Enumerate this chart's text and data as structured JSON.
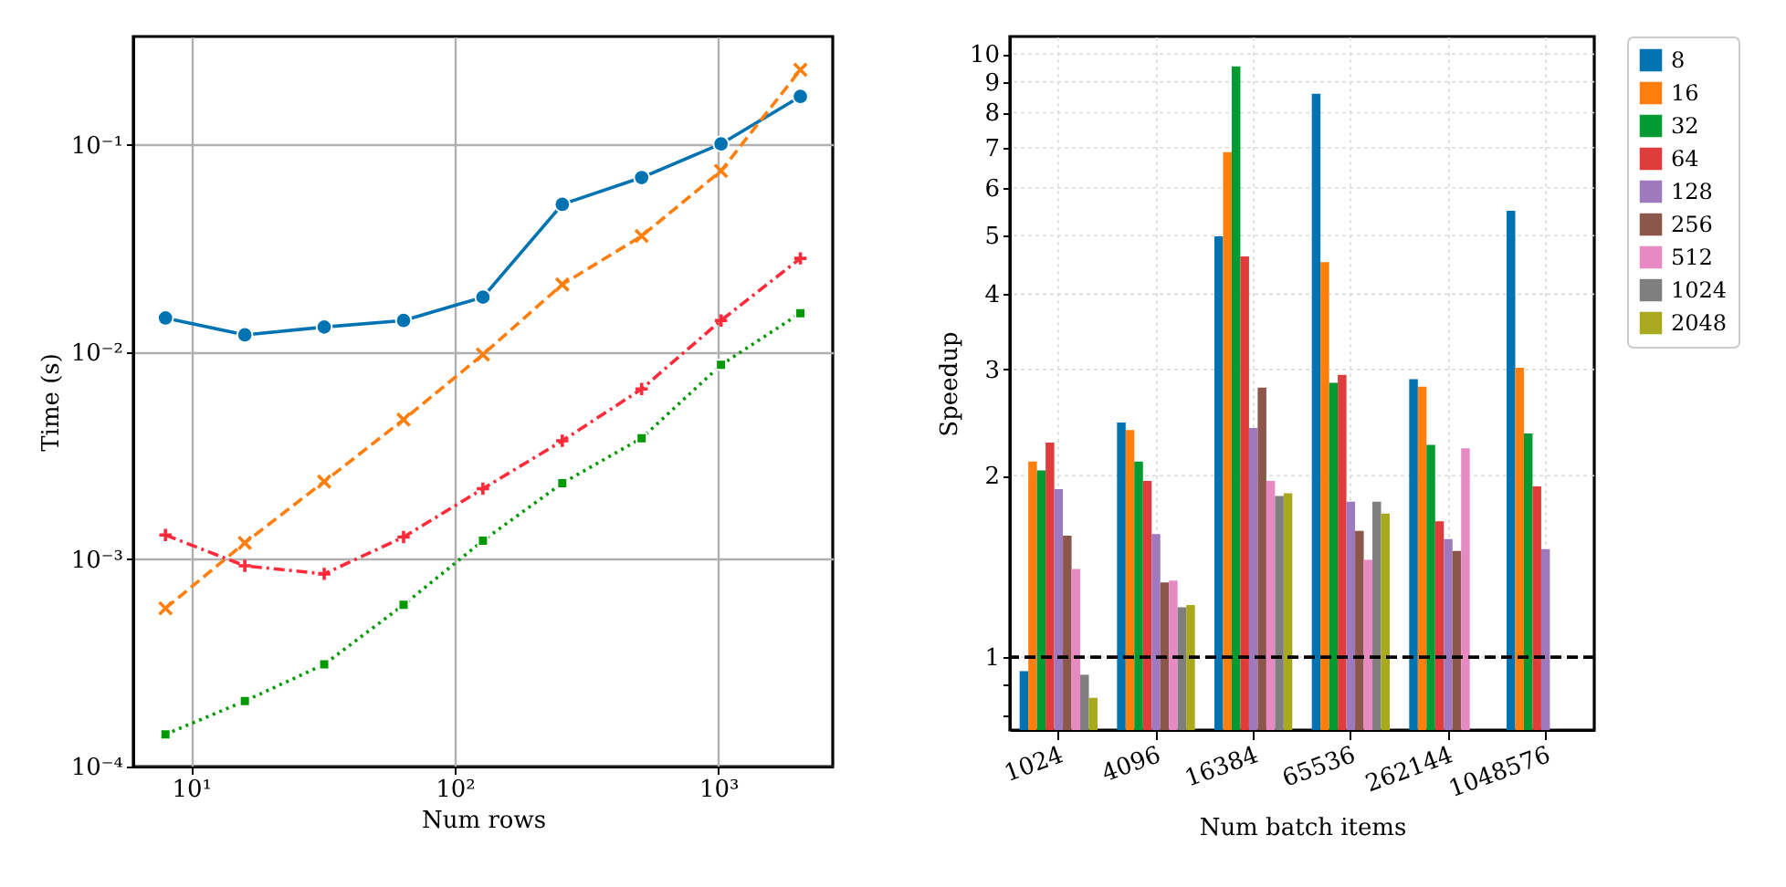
{
  "chart_data": [
    {
      "type": "line",
      "xlabel": "Num rows",
      "ylabel": "Time (s)",
      "log": "xy",
      "grid": true,
      "xlim": [
        6.04,
        2717
      ],
      "ylim": [
        0.0001,
        0.333
      ],
      "xticks": [
        {
          "value": 10,
          "label": "10¹"
        },
        {
          "value": 100,
          "label": "10²"
        },
        {
          "value": 1000,
          "label": "10³"
        }
      ],
      "yticks": [
        {
          "value": 0.0001,
          "label": "10⁻⁴"
        },
        {
          "value": 0.001,
          "label": "10⁻³"
        },
        {
          "value": 0.01,
          "label": "10⁻²"
        },
        {
          "value": 0.1,
          "label": "10⁻¹"
        }
      ],
      "x": [
        8,
        16,
        32,
        64,
        128,
        256,
        512,
        1024,
        2048
      ],
      "series": [
        {
          "color": "#0173b2",
          "marker": "circle",
          "line_style": "solid",
          "values": [
            0.0146,
            0.0121,
            0.0132,
            0.0142,
            0.0184,
            0.0516,
            0.0695,
            0.101,
            0.171
          ]
        },
        {
          "color": "#ff7f0e",
          "marker": "x",
          "line_style": "dashed",
          "values": [
            0.00058,
            0.0012,
            0.00237,
            0.00472,
            0.00973,
            0.0212,
            0.0363,
            0.0748,
            0.23
          ]
        },
        {
          "color": "#009a00",
          "marker": "square",
          "line_style": "dotted",
          "values": [
            0.000143,
            0.000207,
            0.000311,
            0.000603,
            0.00123,
            0.00233,
            0.00384,
            0.00867,
            0.0154
          ]
        },
        {
          "color": "#ff2a3a",
          "marker": "cross",
          "line_style": "dashdot",
          "values": [
            0.00131,
            0.00093,
            0.00085,
            0.00128,
            0.00219,
            0.00373,
            0.00663,
            0.0142,
            0.0283
          ]
        }
      ]
    },
    {
      "type": "bar",
      "xlabel": "Num batch items",
      "ylabel": "Speedup",
      "log": "y",
      "grid": true,
      "legend": "top right",
      "categories": [
        "1024",
        "4096",
        "16384",
        "65536",
        "262144",
        "1048576"
      ],
      "ylim": [
        0.757,
        10.7
      ],
      "yticks": [
        {
          "value": 0.8,
          "label": null
        },
        {
          "value": 0.9,
          "label": null
        },
        1,
        2,
        3,
        4,
        5,
        6,
        7,
        8,
        9,
        10
      ],
      "ref_lines": [
        {
          "axis": "y",
          "value": 1,
          "color": "#000000",
          "line_style": "dashed"
        }
      ],
      "series": [
        {
          "name": "8",
          "color": "#0173b2",
          "values": [
            0.948,
            2.45,
            4.99,
            8.6,
            2.89,
            5.5
          ]
        },
        {
          "name": "16",
          "color": "#ff7f0e",
          "values": [
            2.11,
            2.38,
            6.88,
            4.52,
            2.81,
            3.02
          ]
        },
        {
          "name": "32",
          "color": "#029a33",
          "values": [
            2.04,
            2.11,
            9.55,
            2.85,
            2.25,
            2.35
          ]
        },
        {
          "name": "64",
          "color": "#e03c3c",
          "values": [
            2.27,
            1.96,
            4.62,
            2.94,
            1.68,
            1.92
          ]
        },
        {
          "name": "128",
          "color": "#9f79bd",
          "values": [
            1.9,
            1.6,
            2.4,
            1.81,
            1.57,
            1.51
          ]
        },
        {
          "name": "256",
          "color": "#8c564b",
          "values": [
            1.59,
            1.33,
            2.8,
            1.62,
            1.5,
            null
          ]
        },
        {
          "name": "512",
          "color": "#e78ac3",
          "values": [
            1.4,
            1.34,
            1.96,
            1.45,
            2.22,
            null
          ]
        },
        {
          "name": "1024",
          "color": "#7f7f7f",
          "values": [
            0.935,
            1.21,
            1.85,
            1.81,
            null,
            null
          ]
        },
        {
          "name": "2048",
          "color": "#a9a91f",
          "values": [
            0.856,
            1.22,
            1.87,
            1.73,
            null,
            null
          ]
        }
      ]
    }
  ]
}
